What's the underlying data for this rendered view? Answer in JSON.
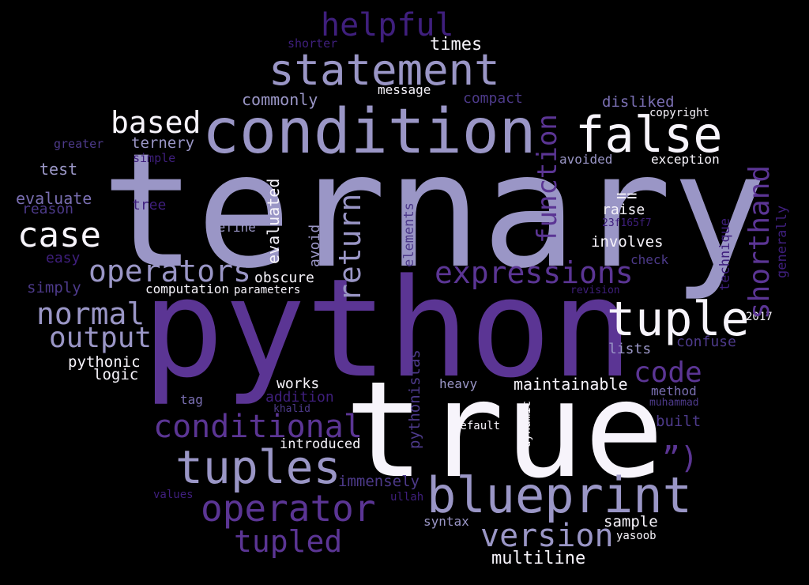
{
  "words": [
    {
      "text": "ternary",
      "color": "#9a96c6"
    },
    {
      "text": "python",
      "color": "#5b3594"
    },
    {
      "text": "true",
      "color": "#f7f4fb"
    },
    {
      "text": "condition",
      "color": "#9a96c6"
    },
    {
      "text": "statement",
      "color": "#9a96c6"
    },
    {
      "text": "false",
      "color": "#f7f4fb"
    },
    {
      "text": "blueprint",
      "color": "#9a96c6"
    },
    {
      "text": "tuples",
      "color": "#9a96c6"
    },
    {
      "text": "tuple",
      "color": "#f7f4fb"
    },
    {
      "text": "helpful",
      "color": "#3f1f7d"
    },
    {
      "text": "operator",
      "color": "#5b3594"
    },
    {
      "text": "conditional",
      "color": "#5b3594"
    },
    {
      "text": "expressions",
      "color": "#5b3594"
    },
    {
      "text": "version",
      "color": "#9a96c6"
    },
    {
      "text": "tupled",
      "color": "#5b3594"
    },
    {
      "text": "operators",
      "color": "#9a96c6"
    },
    {
      "text": "case",
      "color": "#f7f4fb"
    },
    {
      "text": "based",
      "color": "#f7f4fb"
    },
    {
      "text": "return",
      "color": "#9a96c6"
    },
    {
      "text": "function",
      "color": "#5b3594"
    },
    {
      "text": "shorthand",
      "color": "#5b3594"
    },
    {
      "text": "normal",
      "color": "#9a96c6"
    },
    {
      "text": "output",
      "color": "#9a96c6"
    },
    {
      "text": "code",
      "color": "#5b3594"
    },
    {
      "text": "”)",
      "color": "#5b3594"
    },
    {
      "text": "multiline",
      "color": "#f7f4fb"
    },
    {
      "text": "maintainable",
      "color": "#f7f4fb"
    },
    {
      "text": "times",
      "color": "#f7f4fb"
    },
    {
      "text": "commonly",
      "color": "#9a96c6"
    },
    {
      "text": "message",
      "color": "#f7f4fb"
    },
    {
      "text": "compact",
      "color": "#4d3a8a"
    },
    {
      "text": "disliked",
      "color": "#7a6fb2"
    },
    {
      "text": "copyright",
      "color": "#f7f4fb"
    },
    {
      "text": "shorter",
      "color": "#3f1f7d"
    },
    {
      "text": "ternery",
      "color": "#9a96c6"
    },
    {
      "text": "greater",
      "color": "#4d3a8a"
    },
    {
      "text": "simple",
      "color": "#3f1f7d"
    },
    {
      "text": "test",
      "color": "#9a96c6"
    },
    {
      "text": "evaluate",
      "color": "#7a6fb2"
    },
    {
      "text": "reason",
      "color": "#4d3a8a"
    },
    {
      "text": "tree",
      "color": "#3f1f7d"
    },
    {
      "text": "define",
      "color": "#9a96c6"
    },
    {
      "text": "evaluated",
      "color": "#f7f4fb"
    },
    {
      "text": "avoid",
      "color": "#9a96c6"
    },
    {
      "text": "elements",
      "color": "#4d3a8a"
    },
    {
      "text": "easy",
      "color": "#3f1f7d"
    },
    {
      "text": "simply",
      "color": "#4d3a8a"
    },
    {
      "text": "computation",
      "color": "#f7f4fb"
    },
    {
      "text": "parameters",
      "color": "#f7f4fb"
    },
    {
      "text": "obscure",
      "color": "#f7f4fb"
    },
    {
      "text": "avoided",
      "color": "#9a96c6"
    },
    {
      "text": "exception",
      "color": "#f7f4fb"
    },
    {
      "text": "==",
      "color": "#f7f4fb"
    },
    {
      "text": "raise",
      "color": "#f7f4fb"
    },
    {
      "text": "23f165f7",
      "color": "#3f1f7d"
    },
    {
      "text": "involves",
      "color": "#f7f4fb"
    },
    {
      "text": "check",
      "color": "#4d3a8a"
    },
    {
      "text": "revision",
      "color": "#3f1f7d"
    },
    {
      "text": "technique",
      "color": "#3f1f7d"
    },
    {
      "text": "generally",
      "color": "#3f1f7d"
    },
    {
      "text": "2017",
      "color": "#f7f4fb"
    },
    {
      "text": "lists",
      "color": "#9a96c6"
    },
    {
      "text": "confuse",
      "color": "#4d3a8a"
    },
    {
      "text": "pythonic",
      "color": "#f7f4fb"
    },
    {
      "text": "logic",
      "color": "#f7f4fb"
    },
    {
      "text": "works",
      "color": "#f7f4fb"
    },
    {
      "text": "addition",
      "color": "#3f1f7d"
    },
    {
      "text": "khalid",
      "color": "#4d3a8a"
    },
    {
      "text": "tag",
      "color": "#7a6fb2"
    },
    {
      "text": "pythonistas",
      "color": "#4d3a8a"
    },
    {
      "text": "heavy",
      "color": "#9a96c6"
    },
    {
      "text": "method",
      "color": "#7a6fb2"
    },
    {
      "text": "muhammad",
      "color": "#4d3a8a"
    },
    {
      "text": "built",
      "color": "#4d3a8a"
    },
    {
      "text": "default",
      "color": "#f7f4fb"
    },
    {
      "text": "dynamic",
      "color": "#f7f4fb"
    },
    {
      "text": "introduced",
      "color": "#f7f4fb"
    },
    {
      "text": "immensely",
      "color": "#4d3a8a"
    },
    {
      "text": "ullah",
      "color": "#3f1f7d"
    },
    {
      "text": "values",
      "color": "#3f1f7d"
    },
    {
      "text": "syntax",
      "color": "#9a96c6"
    },
    {
      "text": "sample",
      "color": "#f7f4fb"
    },
    {
      "text": "yasoob",
      "color": "#f7f4fb"
    }
  ]
}
